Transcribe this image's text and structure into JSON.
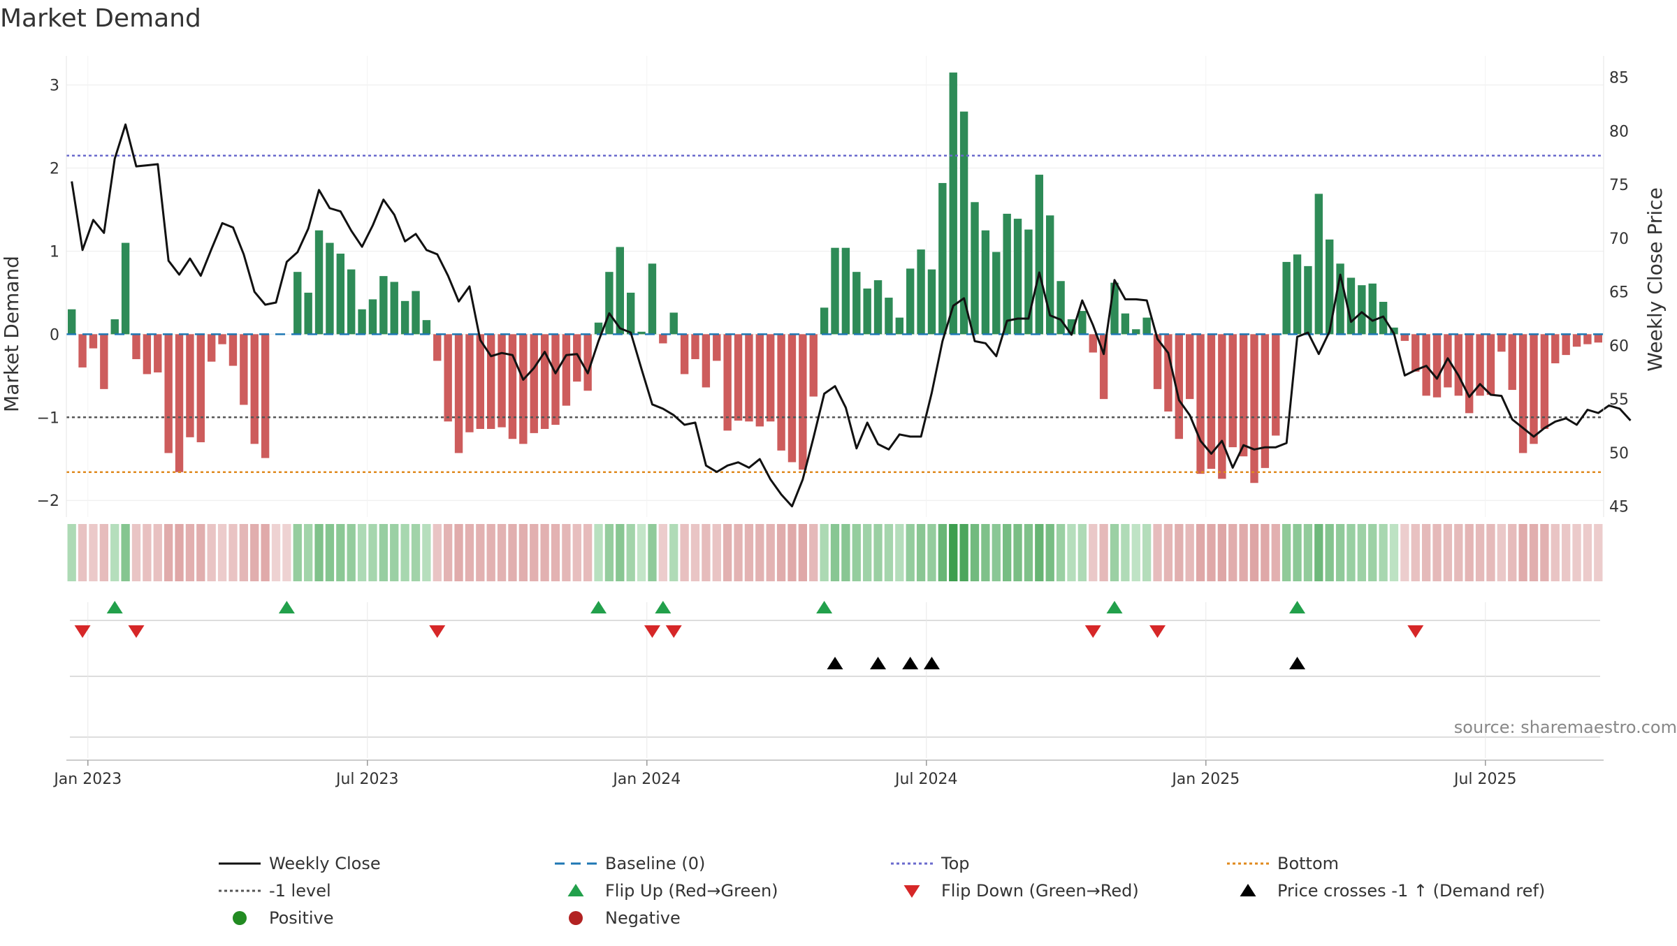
{
  "chart_data": {
    "type": "bar",
    "title": "Market Demand",
    "ylabel": "Market Demand",
    "y2label": "Weekly Close Price",
    "source": "source: sharemaestro.com",
    "ylim": [
      -2.2,
      3.35
    ],
    "y2lim": [
      44,
      87
    ],
    "left_ticks": [
      -2,
      -1,
      0,
      1,
      2,
      3
    ],
    "left_tick_labels": [
      "−2",
      "−1",
      "0",
      "1",
      "2",
      "3"
    ],
    "right_ticks": [
      45,
      50,
      55,
      60,
      65,
      70,
      75,
      80,
      85
    ],
    "right_tick_labels": [
      "45",
      "50",
      "55",
      "60",
      "65",
      "70",
      "75",
      "80",
      "85"
    ],
    "x_ticks": [
      1.5,
      27.5,
      53.5,
      79.5,
      105.5,
      131.5
    ],
    "x_tick_labels": [
      "Jan 2023",
      "Jul 2023",
      "Jan 2024",
      "Jul 2024",
      "Jan 2025",
      "Jul 2025"
    ],
    "top_level": 2.15,
    "minus_one_level": -1.0,
    "bottom_level": -1.66,
    "demand": [
      0.3,
      -0.4,
      -0.17,
      -0.66,
      0.18,
      1.1,
      -0.3,
      -0.48,
      -0.46,
      -1.43,
      -1.66,
      -1.24,
      -1.3,
      -0.33,
      -0.12,
      -0.38,
      -0.85,
      -1.32,
      -1.49,
      0,
      0,
      0.75,
      0.5,
      1.25,
      1.1,
      0.97,
      0.78,
      0.3,
      0.42,
      0.7,
      0.63,
      0.4,
      0.52,
      0.17,
      -0.32,
      -1.05,
      -1.43,
      -1.18,
      -1.14,
      -1.14,
      -1.12,
      -1.26,
      -1.32,
      -1.19,
      -1.14,
      -1.09,
      -0.86,
      -0.57,
      -0.68,
      0.14,
      0.75,
      1.05,
      0.5,
      0.03,
      0.85,
      -0.11,
      0.26,
      -0.48,
      -0.3,
      -0.64,
      -0.32,
      -1.16,
      -1.04,
      -1.05,
      -1.11,
      -1.05,
      -1.4,
      -1.54,
      -1.63,
      -0.75,
      0.32,
      1.04,
      1.04,
      0.75,
      0.55,
      0.65,
      0.44,
      0.2,
      0.79,
      1.02,
      0.78,
      1.82,
      3.15,
      2.68,
      1.59,
      1.25,
      0.99,
      1.45,
      1.39,
      1.26,
      1.92,
      1.43,
      0.64,
      0.18,
      0.28,
      -0.22,
      -0.78,
      0.62,
      0.25,
      0.06,
      0.2,
      -0.66,
      -0.93,
      -1.26,
      -0.78,
      -1.68,
      -1.62,
      -1.74,
      -1.36,
      -1.47,
      -1.79,
      -1.61,
      -1.22,
      0.87,
      0.96,
      0.82,
      1.69,
      1.14,
      0.85,
      0.68,
      0.59,
      0.61,
      0.39,
      0.08,
      -0.08,
      -0.45,
      -0.74,
      -0.76,
      -0.64,
      -0.74,
      -0.95,
      -0.74,
      -0.73,
      -0.21,
      -0.67,
      -1.43,
      -1.32,
      -1.14,
      -0.35,
      -0.25,
      -0.15,
      -0.12,
      -0.1
    ],
    "price": [
      75.3,
      68.9,
      71.7,
      70.5,
      77.4,
      80.6,
      76.7,
      76.8,
      76.9,
      67.9,
      66.6,
      68.1,
      66.5,
      69,
      71.4,
      71,
      68.5,
      65,
      63.8,
      64,
      67.8,
      68.7,
      70.9,
      74.5,
      72.8,
      72.5,
      70.7,
      69.2,
      71.2,
      73.6,
      72.2,
      69.7,
      70.4,
      68.9,
      68.5,
      66.5,
      64.1,
      65.5,
      60.5,
      59,
      59.3,
      59.1,
      56.8,
      57.9,
      59.4,
      57.4,
      59.1,
      59.2,
      57.4,
      60.4,
      63,
      61.6,
      61.2,
      57.8,
      54.5,
      54.1,
      53.5,
      52.6,
      52.8,
      48.8,
      48.2,
      48.8,
      49.1,
      48.6,
      49.4,
      47.5,
      46.1,
      45,
      47.5,
      51.4,
      55.5,
      56.2,
      54.2,
      50.4,
      52.8,
      50.8,
      50.3,
      51.7,
      51.5,
      51.5,
      55.6,
      60.4,
      63.7,
      64.4,
      60.4,
      60.2,
      59,
      62.3,
      62.5,
      62.5,
      66.8,
      62.8,
      62.4,
      61,
      64.2,
      61.9,
      59.2,
      66.1,
      64.3,
      64.3,
      64.2,
      60.6,
      59.3,
      54.9,
      53.5,
      51.1,
      49.9,
      51.1,
      48.6,
      50.7,
      50.3,
      50.5,
      50.5,
      50.9,
      60.8,
      61.2,
      59.2,
      61.3,
      66.6,
      62.2,
      63.1,
      62.3,
      62.7,
      61.1,
      57.2,
      57.7,
      58.1,
      56.9,
      58.8,
      57.2,
      55.2,
      56.4,
      55.4,
      55.3,
      53.1,
      52.3,
      51.5,
      52.3,
      52.9,
      53.2,
      52.6,
      54,
      53.7,
      54.4,
      54.1,
      53
    ],
    "flip_up_idx": [
      4,
      20,
      49,
      55,
      70,
      97,
      114
    ],
    "flip_down_idx": [
      1,
      6,
      34,
      54,
      56,
      95,
      101,
      125
    ],
    "cross_idx": [
      71,
      75,
      78,
      80,
      114
    ],
    "legend": [
      "Weekly Close",
      "Baseline (0)",
      "Top",
      "Bottom",
      "-1 level",
      "Flip Up (Red→Green)",
      "Flip Down (Green→Red)",
      "Price crosses -1 ↑ (Demand ref)",
      "Positive",
      "Negative"
    ]
  },
  "colors": {
    "positive": "#2e8b57",
    "negative": "#cd5c5c",
    "price": "#111111",
    "baseline": "#1f77b4",
    "top": "#6a6acd",
    "bottom": "#e08a1e",
    "minus_one": "#555555",
    "flip_up": "#22a04b",
    "flip_down": "#d62728",
    "cross": "#000000",
    "legend_positive": "#228b22",
    "legend_negative": "#b22222"
  }
}
